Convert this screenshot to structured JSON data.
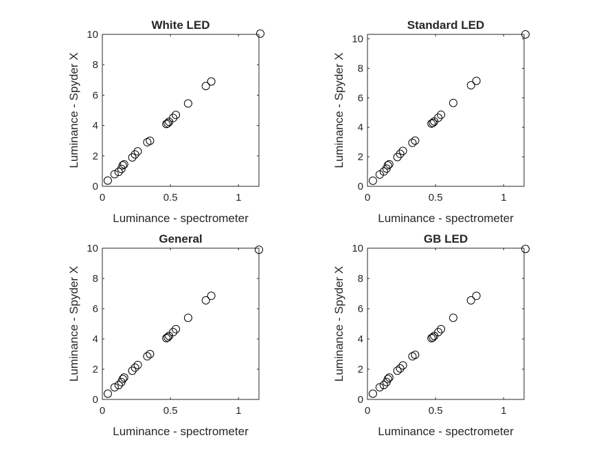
{
  "chart_data": [
    {
      "type": "scatter",
      "title": "White LED",
      "xlabel": "Luminance - spectrometer",
      "ylabel": "Luminance - Spyder X",
      "xlim": [
        0,
        1.15
      ],
      "ylim": [
        0,
        10
      ],
      "xticks": [
        0,
        0.5,
        1
      ],
      "xtick_labels": [
        "0",
        "0.5",
        "1"
      ],
      "yticks": [
        0,
        2,
        4,
        6,
        8,
        10
      ],
      "ytick_labels": [
        "0",
        "2",
        "4",
        "6",
        "8",
        "10"
      ],
      "grid": false,
      "legend": "none",
      "marker": "open-circle",
      "x": [
        0.04,
        0.09,
        0.12,
        0.14,
        0.15,
        0.16,
        0.22,
        0.24,
        0.26,
        0.33,
        0.35,
        0.47,
        0.48,
        0.49,
        0.52,
        0.54,
        0.63,
        0.76,
        0.8,
        1.16
      ],
      "y": [
        0.38,
        0.8,
        0.95,
        1.15,
        1.38,
        1.45,
        1.9,
        2.1,
        2.3,
        2.9,
        3.0,
        4.1,
        4.15,
        4.25,
        4.5,
        4.7,
        5.45,
        6.6,
        6.9,
        10.05
      ]
    },
    {
      "type": "scatter",
      "title": "Standard LED",
      "xlabel": "Luminance - spectrometer",
      "ylabel": "Luminance - Spyder X",
      "xlim": [
        0,
        1.15
      ],
      "ylim": [
        0,
        10.3
      ],
      "xticks": [
        0,
        0.5,
        1
      ],
      "xtick_labels": [
        "0",
        "0.5",
        "1"
      ],
      "yticks": [
        0,
        2,
        4,
        6,
        8,
        10
      ],
      "ytick_labels": [
        "0",
        "2",
        "4",
        "6",
        "8",
        "10"
      ],
      "grid": false,
      "legend": "none",
      "marker": "open-circle",
      "x": [
        0.04,
        0.09,
        0.12,
        0.14,
        0.15,
        0.16,
        0.22,
        0.24,
        0.26,
        0.33,
        0.35,
        0.47,
        0.48,
        0.49,
        0.52,
        0.54,
        0.63,
        0.76,
        0.8,
        1.16
      ],
      "y": [
        0.38,
        0.8,
        1.0,
        1.2,
        1.42,
        1.5,
        1.98,
        2.2,
        2.4,
        2.95,
        3.1,
        4.25,
        4.3,
        4.4,
        4.65,
        4.85,
        5.65,
        6.85,
        7.15,
        10.3
      ]
    },
    {
      "type": "scatter",
      "title": "General",
      "xlabel": "Luminance - spectrometer",
      "ylabel": "Luminance - Spyder X",
      "xlim": [
        0,
        1.15
      ],
      "ylim": [
        0,
        10
      ],
      "xticks": [
        0,
        0.5,
        1
      ],
      "xtick_labels": [
        "0",
        "0.5",
        "1"
      ],
      "yticks": [
        0,
        2,
        4,
        6,
        8,
        10
      ],
      "ytick_labels": [
        "0",
        "2",
        "4",
        "6",
        "8",
        "10"
      ],
      "grid": false,
      "legend": "none",
      "marker": "open-circle",
      "x": [
        0.04,
        0.09,
        0.12,
        0.14,
        0.15,
        0.16,
        0.22,
        0.24,
        0.26,
        0.33,
        0.35,
        0.47,
        0.48,
        0.49,
        0.52,
        0.54,
        0.63,
        0.76,
        0.8,
        1.15
      ],
      "y": [
        0.38,
        0.8,
        0.95,
        1.15,
        1.35,
        1.45,
        1.9,
        2.1,
        2.28,
        2.85,
        3.0,
        4.05,
        4.1,
        4.2,
        4.45,
        4.65,
        5.4,
        6.55,
        6.85,
        9.9
      ]
    },
    {
      "type": "scatter",
      "title": "GB LED",
      "xlabel": "Luminance - spectrometer",
      "ylabel": "Luminance - Spyder X",
      "xlim": [
        0,
        1.15
      ],
      "ylim": [
        0,
        10
      ],
      "xticks": [
        0,
        0.5,
        1
      ],
      "xtick_labels": [
        "0",
        "0.5",
        "1"
      ],
      "yticks": [
        0,
        2,
        4,
        6,
        8,
        10
      ],
      "ytick_labels": [
        "0",
        "2",
        "4",
        "6",
        "8",
        "10"
      ],
      "grid": false,
      "legend": "none",
      "marker": "open-circle",
      "x": [
        0.04,
        0.09,
        0.12,
        0.14,
        0.15,
        0.16,
        0.22,
        0.24,
        0.26,
        0.33,
        0.35,
        0.47,
        0.48,
        0.49,
        0.52,
        0.54,
        0.63,
        0.76,
        0.8,
        1.16
      ],
      "y": [
        0.38,
        0.8,
        0.95,
        1.15,
        1.35,
        1.45,
        1.9,
        2.05,
        2.25,
        2.85,
        2.95,
        4.05,
        4.1,
        4.2,
        4.45,
        4.65,
        5.4,
        6.55,
        6.85,
        9.95
      ]
    }
  ]
}
